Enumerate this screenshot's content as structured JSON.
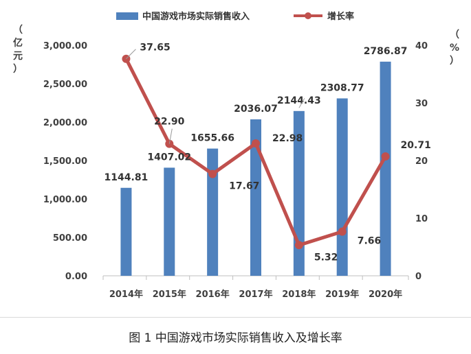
{
  "chart_data": {
    "type": "bar",
    "categories": [
      "2014年",
      "2015年",
      "2016年",
      "2017年",
      "2018年",
      "2019年",
      "2020年"
    ],
    "series": [
      {
        "name": "中国游戏市场实际销售收入",
        "type": "bar",
        "axis": "left",
        "color": "#4f81bd",
        "values": [
          1144.81,
          1407.02,
          1655.66,
          2036.07,
          2144.43,
          2308.77,
          2786.87
        ],
        "labels": [
          "1144.81",
          "1407.02",
          "1655.66",
          "2036.07",
          "2144.43",
          "2308.77",
          "2786.87"
        ]
      },
      {
        "name": "增长率",
        "type": "line",
        "axis": "right",
        "color": "#c0504d",
        "values": [
          37.65,
          22.9,
          17.67,
          22.98,
          5.32,
          7.66,
          20.71
        ],
        "labels": [
          "37.65",
          "22.90",
          "17.67",
          "22.98",
          "5.32",
          "7.66",
          "20.71"
        ]
      }
    ],
    "y_left": {
      "label": "（亿元）",
      "ylim": [
        0,
        3000
      ],
      "ticks": [
        "0.00",
        "500.00",
        "1,000.00",
        "1,500.00",
        "2,000.00",
        "2,500.00",
        "3,000.00"
      ]
    },
    "y_right": {
      "label": "（%）",
      "ylim": [
        0,
        40
      ],
      "ticks": [
        "0",
        "10",
        "20",
        "30",
        "40"
      ]
    },
    "legend_position": "top-center",
    "grid": false
  },
  "caption": "图 1  中国游戏市场实际销售收入及增长率"
}
